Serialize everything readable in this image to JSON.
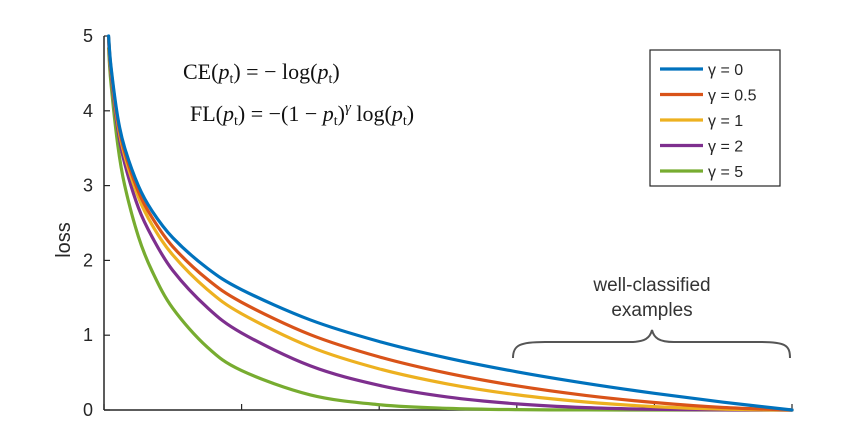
{
  "chart_data": {
    "type": "line",
    "title": "",
    "xlabel": "",
    "ylabel": "loss",
    "xlim": [
      0,
      1
    ],
    "ylim": [
      0,
      5
    ],
    "yticks": [
      "0",
      "1",
      "2",
      "3",
      "4",
      "5"
    ],
    "grid": false,
    "legend_position": "top-right",
    "formulas": [
      "CE(pt) = − log(pt)",
      "FL(pt) = −(1 − pt)γ log(pt)"
    ],
    "annotation": [
      "well-classified",
      "examples"
    ],
    "x": [
      0.0067,
      0.01,
      0.02,
      0.03,
      0.05,
      0.07,
      0.1,
      0.15,
      0.2,
      0.3,
      0.4,
      0.5,
      0.6,
      0.7,
      0.8,
      0.9,
      1.0
    ],
    "series": [
      {
        "name": "γ = 0",
        "color": "#0072BD",
        "values": [
          5.0,
          4.605,
          3.912,
          3.507,
          2.996,
          2.659,
          2.303,
          1.897,
          1.609,
          1.204,
          0.916,
          0.693,
          0.511,
          0.357,
          0.223,
          0.105,
          0.0
        ]
      },
      {
        "name": "γ = 0.5",
        "color": "#D95319",
        "values": [
          4.983,
          4.582,
          3.873,
          3.454,
          2.92,
          2.571,
          2.184,
          1.749,
          1.44,
          1.007,
          0.71,
          0.49,
          0.323,
          0.195,
          0.1,
          0.033,
          0.0
        ]
      },
      {
        "name": "γ = 1",
        "color": "#EDB120",
        "values": [
          4.966,
          4.559,
          3.834,
          3.402,
          2.846,
          2.473,
          2.072,
          1.612,
          1.287,
          0.843,
          0.55,
          0.347,
          0.204,
          0.107,
          0.045,
          0.011,
          0.0
        ]
      },
      {
        "name": "γ = 2",
        "color": "#7E2F8E",
        "values": [
          4.933,
          4.513,
          3.757,
          3.299,
          2.704,
          2.312,
          1.865,
          1.371,
          1.03,
          0.59,
          0.33,
          0.173,
          0.082,
          0.032,
          0.009,
          0.001,
          0.0
        ]
      },
      {
        "name": "γ = 5",
        "color": "#77AC30",
        "values": [
          4.834,
          4.38,
          3.544,
          3.006,
          2.318,
          1.855,
          1.359,
          0.841,
          0.527,
          0.202,
          0.071,
          0.022,
          0.005,
          0.001,
          0.0,
          0.0,
          0.0
        ]
      }
    ]
  }
}
